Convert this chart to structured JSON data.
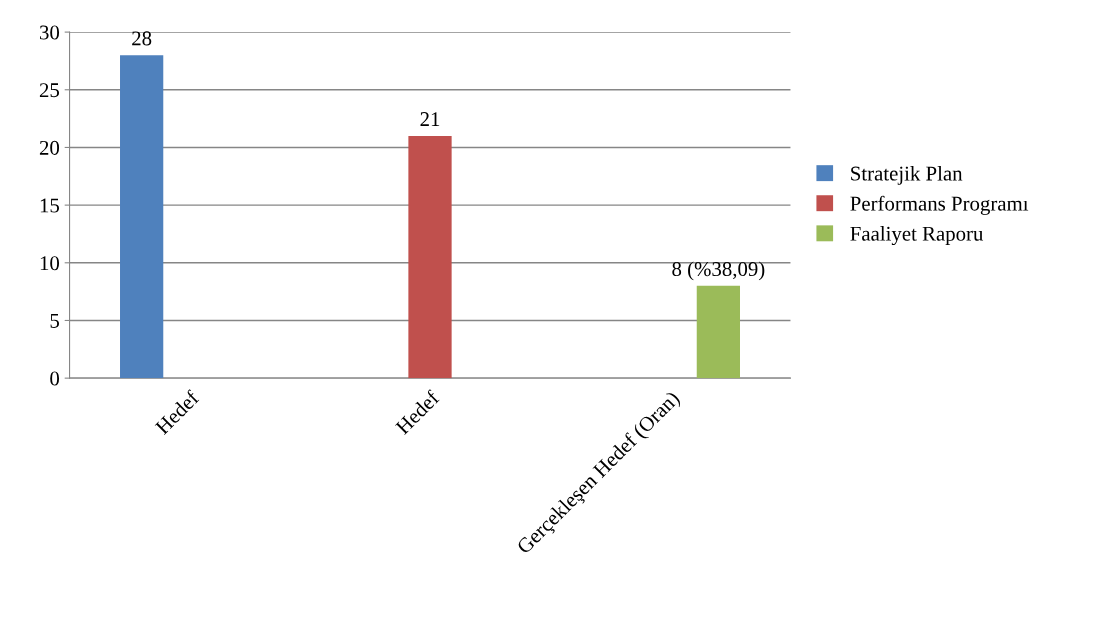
{
  "chart_data": {
    "type": "bar",
    "categories": [
      "Hedef",
      "Hedef",
      "Gerçekleşen Hedef (Oran)"
    ],
    "series": [
      {
        "name": "Stratejik Plan",
        "color": "#4f81bd",
        "values": [
          28,
          null,
          null
        ],
        "value_labels": [
          "28",
          null,
          null
        ]
      },
      {
        "name": "Performans Programı",
        "color": "#c0504d",
        "values": [
          null,
          21,
          null
        ],
        "value_labels": [
          null,
          "21",
          null
        ]
      },
      {
        "name": "Faaliyet Raporu",
        "color": "#9bbb59",
        "values": [
          null,
          null,
          8
        ],
        "value_labels": [
          null,
          null,
          "8 (%38,09)"
        ]
      }
    ],
    "ylim": [
      0,
      30
    ],
    "yticks": [
      0,
      5,
      10,
      15,
      20,
      25,
      30
    ],
    "grid": "y",
    "legend": "right"
  }
}
